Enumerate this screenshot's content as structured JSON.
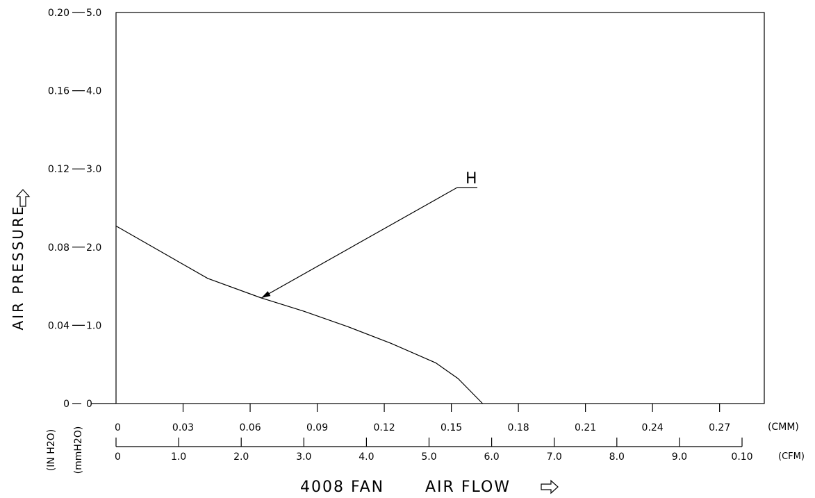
{
  "chart_data": {
    "type": "line",
    "title": "4008 FAN",
    "xlabel": "AIR FLOW",
    "ylabel": "AIR PRESSURE",
    "x_primary_unit": "(CMM)",
    "x_secondary_unit": "(CFM)",
    "y_primary_unit": "(mmH2O)",
    "y_secondary_unit": "(IN H2O)",
    "x_cmm_ticks": [
      "0",
      "0.03",
      "0.06",
      "0.09",
      "0.12",
      "0.15",
      "0.18",
      "0.21",
      "0.24",
      "0.27"
    ],
    "x_cfm_ticks": [
      "0",
      "1.0",
      "2.0",
      "3.0",
      "4.0",
      "5.0",
      "6.0",
      "7.0",
      "8.0",
      "9.0",
      "0.10"
    ],
    "y_mmh2o_ticks": [
      "0",
      "1.0",
      "2.0",
      "3.0",
      "4.0",
      "5.0"
    ],
    "y_inh2o_ticks": [
      "0",
      "0.04",
      "0.08",
      "0.12",
      "0.16",
      "0.20"
    ],
    "xlim": [
      0,
      0.29
    ],
    "ylim": [
      0,
      5.0
    ],
    "grid": false,
    "series": [
      {
        "name": "H",
        "x": [
          0,
          0.041,
          0.065,
          0.084,
          0.104,
          0.123,
          0.143,
          0.153,
          0.164
        ],
        "y": [
          2.27,
          1.6,
          1.35,
          1.18,
          0.98,
          0.77,
          0.52,
          0.32,
          0
        ]
      }
    ],
    "annotation": {
      "label": "H",
      "point_x": 0.065,
      "point_y": 1.35
    }
  }
}
